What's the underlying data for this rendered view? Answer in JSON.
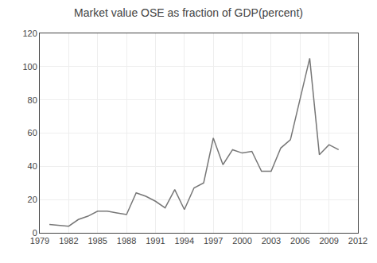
{
  "chart_data": {
    "type": "line",
    "title": "Market value OSE as fraction of GDP(percent)",
    "x": [
      1980,
      1981,
      1982,
      1983,
      1984,
      1985,
      1986,
      1987,
      1988,
      1989,
      1990,
      1991,
      1992,
      1993,
      1994,
      1995,
      1996,
      1997,
      1998,
      1999,
      2000,
      2001,
      2002,
      2003,
      2004,
      2005,
      2006,
      2007,
      2008,
      2009,
      2010
    ],
    "values": [
      5,
      4.5,
      4,
      8,
      10,
      13,
      13,
      12,
      11,
      24,
      22,
      19,
      15,
      26,
      14,
      27,
      30,
      57,
      41,
      50,
      48,
      49,
      37,
      37,
      51,
      56,
      80,
      105,
      47,
      53,
      50
    ],
    "color": "#777777",
    "xlim": [
      1979,
      2012
    ],
    "ylim": [
      0,
      120
    ],
    "xticks": [
      1979,
      1982,
      1985,
      1988,
      1991,
      1994,
      1997,
      2000,
      2003,
      2006,
      2009,
      2012
    ],
    "yticks": [
      0,
      20,
      40,
      60,
      80,
      100,
      120
    ],
    "grid": true
  }
}
